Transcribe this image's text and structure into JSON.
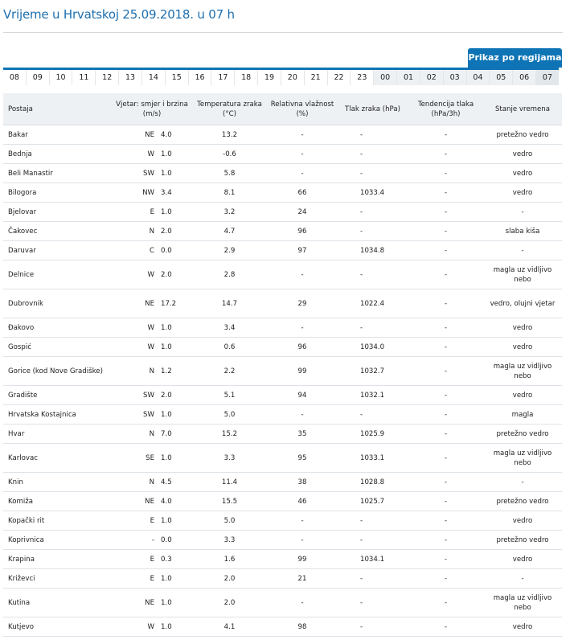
{
  "page": {
    "title": "Vrijeme u Hrvatskoj 25.09.2018. u 07 h",
    "region_button": "Prikaz po regijama"
  },
  "hours": [
    "08",
    "09",
    "10",
    "11",
    "12",
    "13",
    "14",
    "15",
    "16",
    "17",
    "18",
    "19",
    "20",
    "21",
    "22",
    "23",
    "00",
    "01",
    "02",
    "03",
    "04",
    "05",
    "06",
    "07"
  ],
  "table": {
    "headers": {
      "station": "Postaja",
      "wind": "Vjetar: smjer i brzina (m/s)",
      "temp": "Temperatura zraka (°C)",
      "humidity": "Relativna vlažnost (%)",
      "pressure": "Tlak zraka (hPa)",
      "tendency": "Tendencija tlaka (hPa/3h)",
      "state": "Stanje vremena"
    },
    "rows": [
      {
        "station": "Bakar",
        "dir": "NE",
        "speed": "4.0",
        "temp": "13.2",
        "hum": "-",
        "pres": "-",
        "tend": "-",
        "state": "pretežno vedro"
      },
      {
        "station": "Bednja",
        "dir": "W",
        "speed": "1.0",
        "temp": "-0.6",
        "hum": "-",
        "pres": "-",
        "tend": "-",
        "state": "vedro"
      },
      {
        "station": "Beli Manastir",
        "dir": "SW",
        "speed": "1.0",
        "temp": "5.8",
        "hum": "-",
        "pres": "-",
        "tend": "-",
        "state": "vedro"
      },
      {
        "station": "Bilogora",
        "dir": "NW",
        "speed": "3.4",
        "temp": "8.1",
        "hum": "66",
        "pres": "1033.4",
        "tend": "-",
        "state": "vedro"
      },
      {
        "station": "Bjelovar",
        "dir": "E",
        "speed": "1.0",
        "temp": "3.2",
        "hum": "24",
        "pres": "-",
        "tend": "-",
        "state": "-"
      },
      {
        "station": "Čakovec",
        "dir": "N",
        "speed": "2.0",
        "temp": "4.7",
        "hum": "96",
        "pres": "-",
        "tend": "-",
        "state": "slaba kiša"
      },
      {
        "station": "Daruvar",
        "dir": "C",
        "speed": "0.0",
        "temp": "2.9",
        "hum": "97",
        "pres": "1034.8",
        "tend": "-",
        "state": "-"
      },
      {
        "station": "Delnice",
        "dir": "W",
        "speed": "2.0",
        "temp": "2.8",
        "hum": "-",
        "pres": "-",
        "tend": "-",
        "state": "magla uz vidljivo nebo"
      },
      {
        "station": "Dubrovnik",
        "dir": "NE",
        "speed": "17.2",
        "temp": "14.7",
        "hum": "29",
        "pres": "1022.4",
        "tend": "-",
        "state": "vedro, olujni vjetar"
      },
      {
        "station": "Đakovo",
        "dir": "W",
        "speed": "1.0",
        "temp": "3.4",
        "hum": "-",
        "pres": "-",
        "tend": "-",
        "state": "vedro"
      },
      {
        "station": "Gospić",
        "dir": "W",
        "speed": "1.0",
        "temp": "0.6",
        "hum": "96",
        "pres": "1034.0",
        "tend": "-",
        "state": "vedro"
      },
      {
        "station": "Gorice (kod Nove Gradiške)",
        "dir": "N",
        "speed": "1.2",
        "temp": "2.2",
        "hum": "99",
        "pres": "1032.7",
        "tend": "-",
        "state": "magla uz vidljivo nebo"
      },
      {
        "station": "Gradište",
        "dir": "SW",
        "speed": "2.0",
        "temp": "5.1",
        "hum": "94",
        "pres": "1032.1",
        "tend": "-",
        "state": "vedro"
      },
      {
        "station": "Hrvatska Kostajnica",
        "dir": "SW",
        "speed": "1.0",
        "temp": "5.0",
        "hum": "-",
        "pres": "-",
        "tend": "-",
        "state": "magla"
      },
      {
        "station": "Hvar",
        "dir": "N",
        "speed": "7.0",
        "temp": "15.2",
        "hum": "35",
        "pres": "1025.9",
        "tend": "-",
        "state": "pretežno vedro"
      },
      {
        "station": "Karlovac",
        "dir": "SE",
        "speed": "1.0",
        "temp": "3.3",
        "hum": "95",
        "pres": "1033.1",
        "tend": "-",
        "state": "magla uz vidljivo nebo"
      },
      {
        "station": "Knin",
        "dir": "N",
        "speed": "4.5",
        "temp": "11.4",
        "hum": "38",
        "pres": "1028.8",
        "tend": "-",
        "state": "-"
      },
      {
        "station": "Komiža",
        "dir": "NE",
        "speed": "4.0",
        "temp": "15.5",
        "hum": "46",
        "pres": "1025.7",
        "tend": "-",
        "state": "pretežno vedro"
      },
      {
        "station": "Kopački rit",
        "dir": "E",
        "speed": "1.0",
        "temp": "5.0",
        "hum": "-",
        "pres": "-",
        "tend": "-",
        "state": "vedro"
      },
      {
        "station": "Koprivnica",
        "dir": "-",
        "speed": "0.0",
        "temp": "3.3",
        "hum": "-",
        "pres": "-",
        "tend": "-",
        "state": "pretežno vedro"
      },
      {
        "station": "Krapina",
        "dir": "E",
        "speed": "0.3",
        "temp": "1.6",
        "hum": "99",
        "pres": "1034.1",
        "tend": "-",
        "state": "vedro"
      },
      {
        "station": "Križevci",
        "dir": "E",
        "speed": "1.0",
        "temp": "2.0",
        "hum": "21",
        "pres": "-",
        "tend": "-",
        "state": "-"
      },
      {
        "station": "Kutina",
        "dir": "NE",
        "speed": "1.0",
        "temp": "2.0",
        "hum": "-",
        "pres": "-",
        "tend": "-",
        "state": "magla uz vidljivo nebo"
      },
      {
        "station": "Kutjevo",
        "dir": "W",
        "speed": "1.0",
        "temp": "4.1",
        "hum": "98",
        "pres": "-",
        "tend": "-",
        "state": "vedro"
      }
    ]
  }
}
